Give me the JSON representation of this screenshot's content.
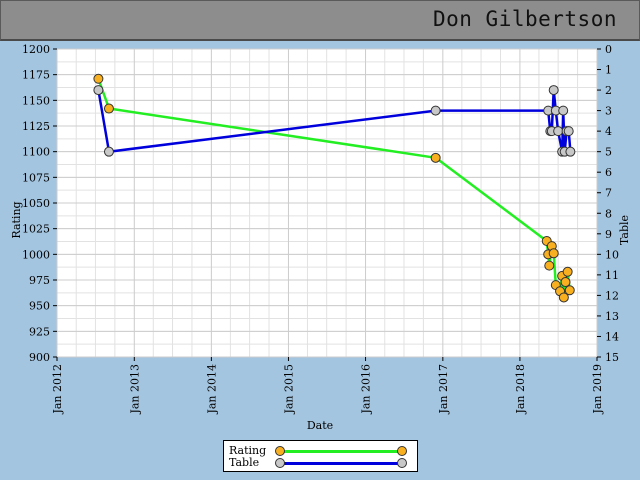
{
  "header": {
    "name": "Don Gilbertson"
  },
  "chart_data": {
    "type": "line",
    "xlabel": "Date",
    "ylabel": "Rating",
    "y2label": "Table",
    "x_ticks": [
      "Jan 2012",
      "Jan 2013",
      "Jan 2014",
      "Jan 2015",
      "Jan 2016",
      "Jan 2017",
      "Jan 2018",
      "Jan 2019"
    ],
    "xlim": [
      "2012-01-01",
      "2019-01-01"
    ],
    "ylim": [
      900,
      1200
    ],
    "y_ticks": [
      1200,
      1175,
      1150,
      1125,
      1100,
      1075,
      1050,
      1025,
      1000,
      975,
      950,
      925,
      900
    ],
    "y2lim": [
      0,
      15
    ],
    "y2_ticks": [
      0,
      1,
      2,
      3,
      4,
      5,
      6,
      7,
      8,
      9,
      10,
      11,
      12,
      13,
      14,
      15
    ],
    "y2_inverted": true,
    "grid": true,
    "legend_placement": "bottom-center",
    "series": [
      {
        "name": "Rating",
        "axis": "left",
        "color": "#22ee22",
        "marker_color": "#f8b020",
        "points": [
          [
            "2012-07-15",
            1171
          ],
          [
            "2012-09-03",
            1142
          ],
          [
            "2016-11-28",
            1094
          ],
          [
            "2018-05-08",
            1013
          ],
          [
            "2018-05-15",
            1000
          ],
          [
            "2018-05-20",
            989
          ],
          [
            "2018-06-01",
            1008
          ],
          [
            "2018-06-10",
            1001
          ],
          [
            "2018-06-20",
            970
          ],
          [
            "2018-07-10",
            964
          ],
          [
            "2018-07-20",
            979
          ],
          [
            "2018-07-28",
            958
          ],
          [
            "2018-08-05",
            973
          ],
          [
            "2018-08-15",
            983
          ],
          [
            "2018-08-25",
            965
          ]
        ]
      },
      {
        "name": "Table",
        "axis": "right",
        "color": "#0000dd",
        "marker_color": "#c8c8c8",
        "points": [
          [
            "2012-07-15",
            2
          ],
          [
            "2012-09-03",
            5
          ],
          [
            "2016-11-28",
            3
          ],
          [
            "2018-05-15",
            3
          ],
          [
            "2018-05-25",
            4
          ],
          [
            "2018-06-01",
            4
          ],
          [
            "2018-06-10",
            2
          ],
          [
            "2018-06-20",
            3
          ],
          [
            "2018-07-01",
            4
          ],
          [
            "2018-07-20",
            5
          ],
          [
            "2018-07-25",
            3
          ],
          [
            "2018-08-01",
            5
          ],
          [
            "2018-08-10",
            4
          ],
          [
            "2018-08-20",
            4
          ],
          [
            "2018-08-28",
            5
          ]
        ]
      }
    ]
  }
}
